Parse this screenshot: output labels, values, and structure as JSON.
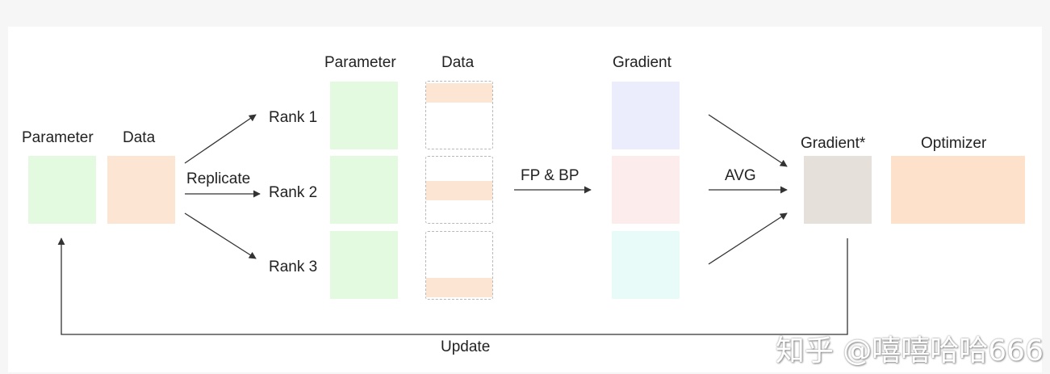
{
  "left_group": {
    "parameter_label": "Parameter",
    "data_label": "Data"
  },
  "replicate_label": "Replicate",
  "ranks": [
    "Rank 1",
    "Rank 2",
    "Rank 3"
  ],
  "middle_group": {
    "parameter_label": "Parameter",
    "data_label": "Data"
  },
  "fp_bp_label": "FP & BP",
  "gradient_label": "Gradient",
  "avg_label": "AVG",
  "gradient_star_label": "Gradient*",
  "optimizer_label": "Optimizer",
  "update_label": "Update",
  "watermark": "知乎 @嘻嘻哈哈666",
  "colors": {
    "parameter": "#e3fae0",
    "data": "#fde5d3",
    "gradient_rank1": "#ebedfc",
    "gradient_rank2": "#fcedec",
    "gradient_rank3": "#e9fbf9",
    "gradient_star": "#e5e1da",
    "optimizer": "#fde1cb",
    "arrow": "#333333"
  }
}
